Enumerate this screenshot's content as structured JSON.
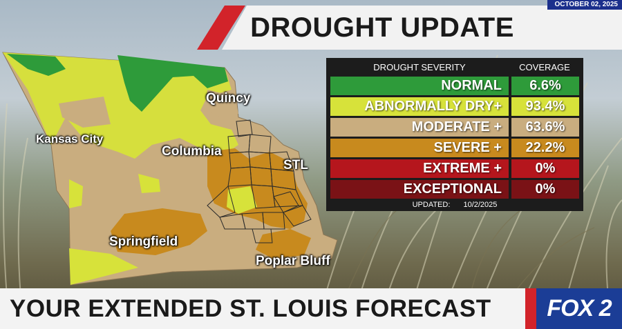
{
  "header": {
    "date": "OCTOBER 02, 2025",
    "title": "DROUGHT UPDATE"
  },
  "map": {
    "cities": {
      "quincy": "Quincy",
      "kansas_city": "Kansas City",
      "columbia": "Columbia",
      "stl": "STL",
      "springfield": "Springfield",
      "poplar_bluff": "Poplar Bluff"
    }
  },
  "legend": {
    "header_severity": "DROUGHT SEVERITY",
    "header_coverage": "COVERAGE",
    "rows": [
      {
        "label": "NORMAL",
        "value": "6.6%",
        "color": "#2e9b3a"
      },
      {
        "label": "ABNORMALLY DRY+",
        "value": "93.4%",
        "color": "#d7e23a"
      },
      {
        "label": "MODERATE +",
        "value": "63.6%",
        "color": "#c9ad7f"
      },
      {
        "label": "SEVERE +",
        "value": "22.2%",
        "color": "#c88a1e"
      },
      {
        "label": "EXTREME +",
        "value": "0%",
        "color": "#b5161d"
      },
      {
        "label": "EXCEPTIONAL",
        "value": "0%",
        "color": "#7a1216"
      }
    ],
    "updated_label": "UPDATED:",
    "updated_date": "10/2/2025"
  },
  "footer": {
    "ticker": "YOUR EXTENDED ST. LOUIS FORECAST",
    "logo": "FOX 2"
  }
}
